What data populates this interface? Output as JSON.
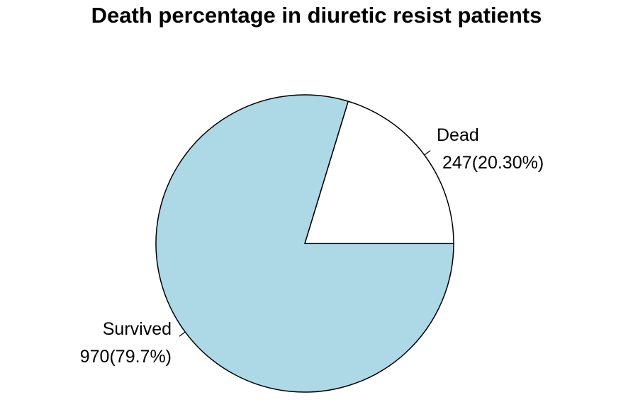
{
  "chart_data": {
    "type": "pie",
    "title": "Death percentage in diuretic resist patients",
    "slices": [
      {
        "name": "Dead",
        "value": 247,
        "percent_label": "247(20.30%)",
        "color": "#ffffff"
      },
      {
        "name": "Survived",
        "value": 970,
        "percent_label": "970(79.7%)",
        "color": "#add8e6"
      }
    ],
    "start_angle_deg": 0,
    "direction": "counterclockwise",
    "outline_color": "#000000"
  }
}
